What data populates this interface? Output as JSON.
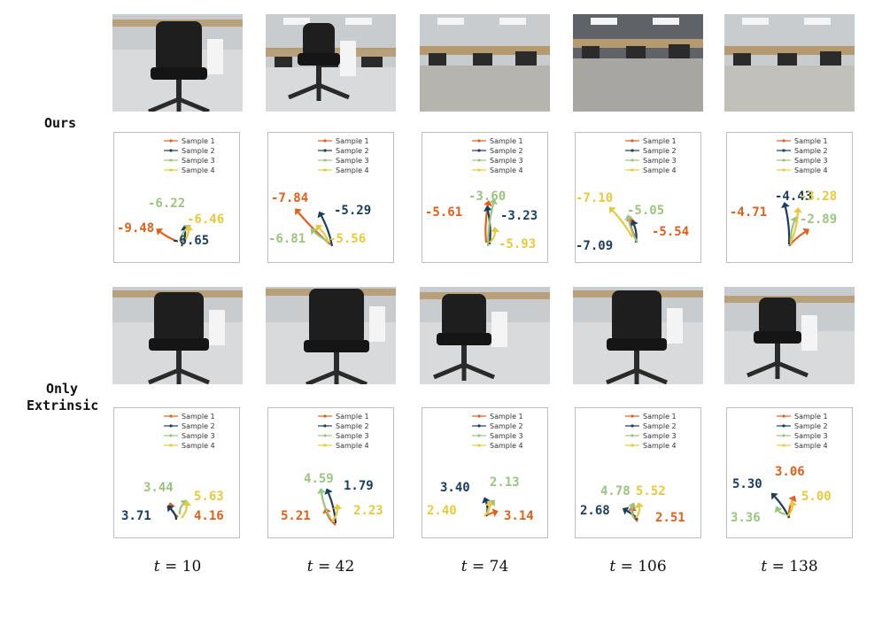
{
  "row_labels": {
    "ours": "Ours",
    "only_line1": "Only",
    "only_line2": "Extrinsic"
  },
  "legend": [
    "Sample 1",
    "Sample 2",
    "Sample 3",
    "Sample 4"
  ],
  "colors": {
    "sample1": "#e0601c",
    "sample2": "#1b3d5e",
    "sample3": "#9cc47f",
    "sample4": "#e8c93c"
  },
  "columns": [
    {
      "t_var": "t",
      "t_eq": "= 10"
    },
    {
      "t_var": "t",
      "t_eq": "= 42"
    },
    {
      "t_var": "t",
      "t_eq": "= 74"
    },
    {
      "t_var": "t",
      "t_eq": "= 106"
    },
    {
      "t_var": "t",
      "t_eq": "= 138"
    }
  ],
  "ours_values": [
    [
      "-9.48",
      "-6.65",
      "-6.22",
      "-6.46"
    ],
    [
      "-7.84",
      "-5.29",
      "-6.81",
      "-5.56"
    ],
    [
      "-5.61",
      "-3.23",
      "-3.60",
      "-5.93"
    ],
    [
      "-5.54",
      "-7.09",
      "-5.05",
      "-7.10"
    ],
    [
      "-4.71",
      "-4.43",
      "-2.89",
      "-3.28"
    ]
  ],
  "extrinsic_values": [
    [
      "4.16",
      "3.71",
      "3.44",
      "5.63"
    ],
    [
      "5.21",
      "1.79",
      "4.59",
      "2.23"
    ],
    [
      "3.14",
      "3.40",
      "2.13",
      "2.40"
    ],
    [
      "2.51",
      "2.68",
      "4.78",
      "5.52"
    ],
    [
      "3.06",
      "5.30",
      "3.36",
      "5.00"
    ]
  ]
}
